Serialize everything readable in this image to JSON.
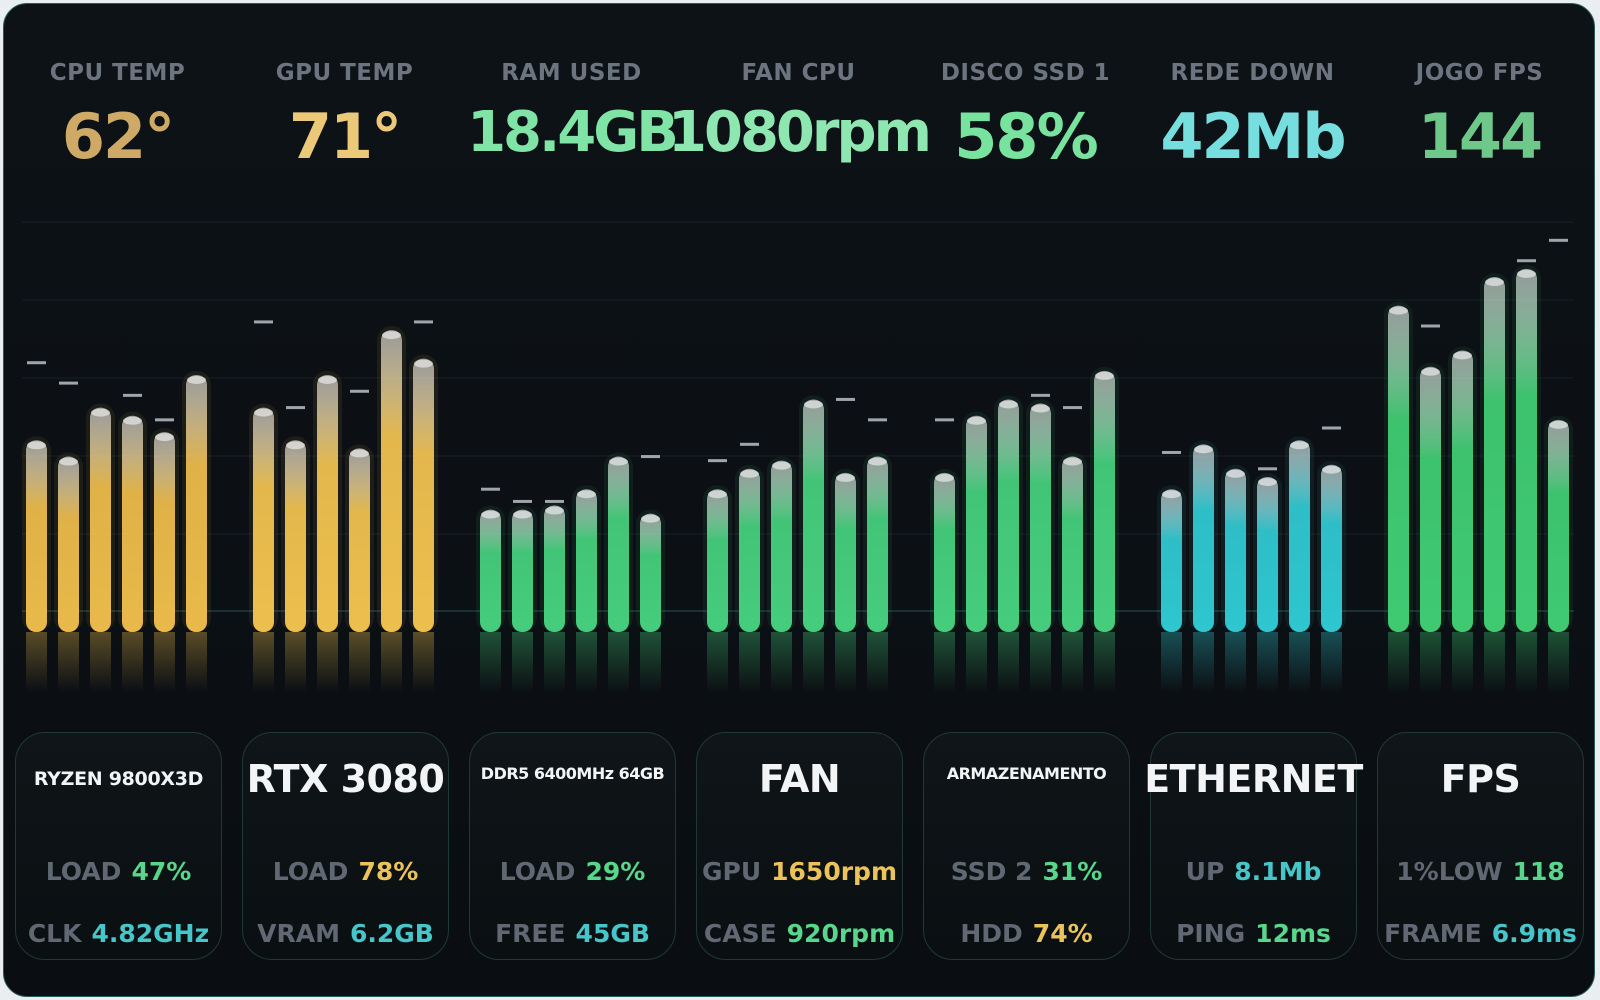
{
  "colors": {
    "cpu": "#e9b94a",
    "gpu": "#edbf4e",
    "ram": "#45cd7c",
    "fan": "#45cd7c",
    "disk": "#45cd7c",
    "net": "#2fc6cf",
    "fps": "#3fca72",
    "bezel": "#2b5a5c",
    "background": "#0b0f13"
  },
  "metrics": [
    {
      "label": "CPU TEMP",
      "value": "62°"
    },
    {
      "label": "GPU TEMP",
      "value": "71°"
    },
    {
      "label": "RAM USED",
      "value": "18.4GB"
    },
    {
      "label": "FAN CPU",
      "value": "1080rpm"
    },
    {
      "label": "DISCO SSD 1",
      "value": "58%"
    },
    {
      "label": "REDE DOWN",
      "value": "42Mb"
    },
    {
      "label": "JOGO FPS",
      "value": "144"
    }
  ],
  "cards": [
    {
      "title": "RYZEN 9800X3D",
      "rows": [
        {
          "key": "LOAD",
          "value": "47%"
        },
        {
          "key": "CLK",
          "value": "4.82GHz"
        }
      ]
    },
    {
      "title": "RTX 3080",
      "rows": [
        {
          "key": "LOAD",
          "value": "78%"
        },
        {
          "key": "VRAM",
          "value": "6.2GB"
        }
      ]
    },
    {
      "title": "DDR5 6400MHz 64GB",
      "rows": [
        {
          "key": "LOAD",
          "value": "29%"
        },
        {
          "key": "FREE",
          "value": "45GB"
        }
      ]
    },
    {
      "title": "FAN",
      "rows": [
        {
          "key": "GPU",
          "value": "1650rpm"
        },
        {
          "key": "CASE",
          "value": "920rpm"
        }
      ]
    },
    {
      "title": "ARMAZENAMENTO",
      "rows": [
        {
          "key": "SSD 2",
          "value": "31%"
        },
        {
          "key": "HDD",
          "value": "74%"
        }
      ]
    },
    {
      "title": "ETHERNET",
      "rows": [
        {
          "key": "UP",
          "value": "8.1Mb"
        },
        {
          "key": "PING",
          "value": "12ms"
        }
      ]
    },
    {
      "title": "FPS",
      "rows": [
        {
          "key": "1%LOW",
          "value": "118"
        },
        {
          "key": "FRAME",
          "value": "6.9ms"
        }
      ]
    }
  ],
  "chart_data": {
    "type": "bar",
    "ylim": [
      0,
      100
    ],
    "grid": true,
    "series": [
      {
        "values": [
          47,
          43,
          55,
          53,
          49,
          63
        ],
        "peaks": [
          66,
          61,
          0,
          58,
          52,
          0
        ]
      },
      {
        "values": [
          55,
          47,
          63,
          45,
          74,
          67
        ],
        "peaks": [
          76,
          55,
          0,
          59,
          0,
          76
        ]
      },
      {
        "values": [
          30,
          30,
          31,
          35,
          43,
          29
        ],
        "peaks": [
          35,
          32,
          32,
          0,
          0,
          43
        ]
      },
      {
        "values": [
          35,
          40,
          42,
          57,
          39,
          43
        ],
        "peaks": [
          42,
          46,
          0,
          0,
          57,
          52
        ]
      },
      {
        "values": [
          39,
          53,
          57,
          56,
          43,
          64
        ],
        "peaks": [
          52,
          0,
          0,
          58,
          55,
          0
        ]
      },
      {
        "values": [
          35,
          46,
          40,
          38,
          47,
          41
        ],
        "peaks": [
          44,
          0,
          0,
          40,
          0,
          50
        ]
      },
      {
        "values": [
          80,
          65,
          69,
          87,
          89,
          52
        ],
        "peaks": [
          0,
          75,
          0,
          0,
          91,
          96
        ]
      }
    ]
  }
}
